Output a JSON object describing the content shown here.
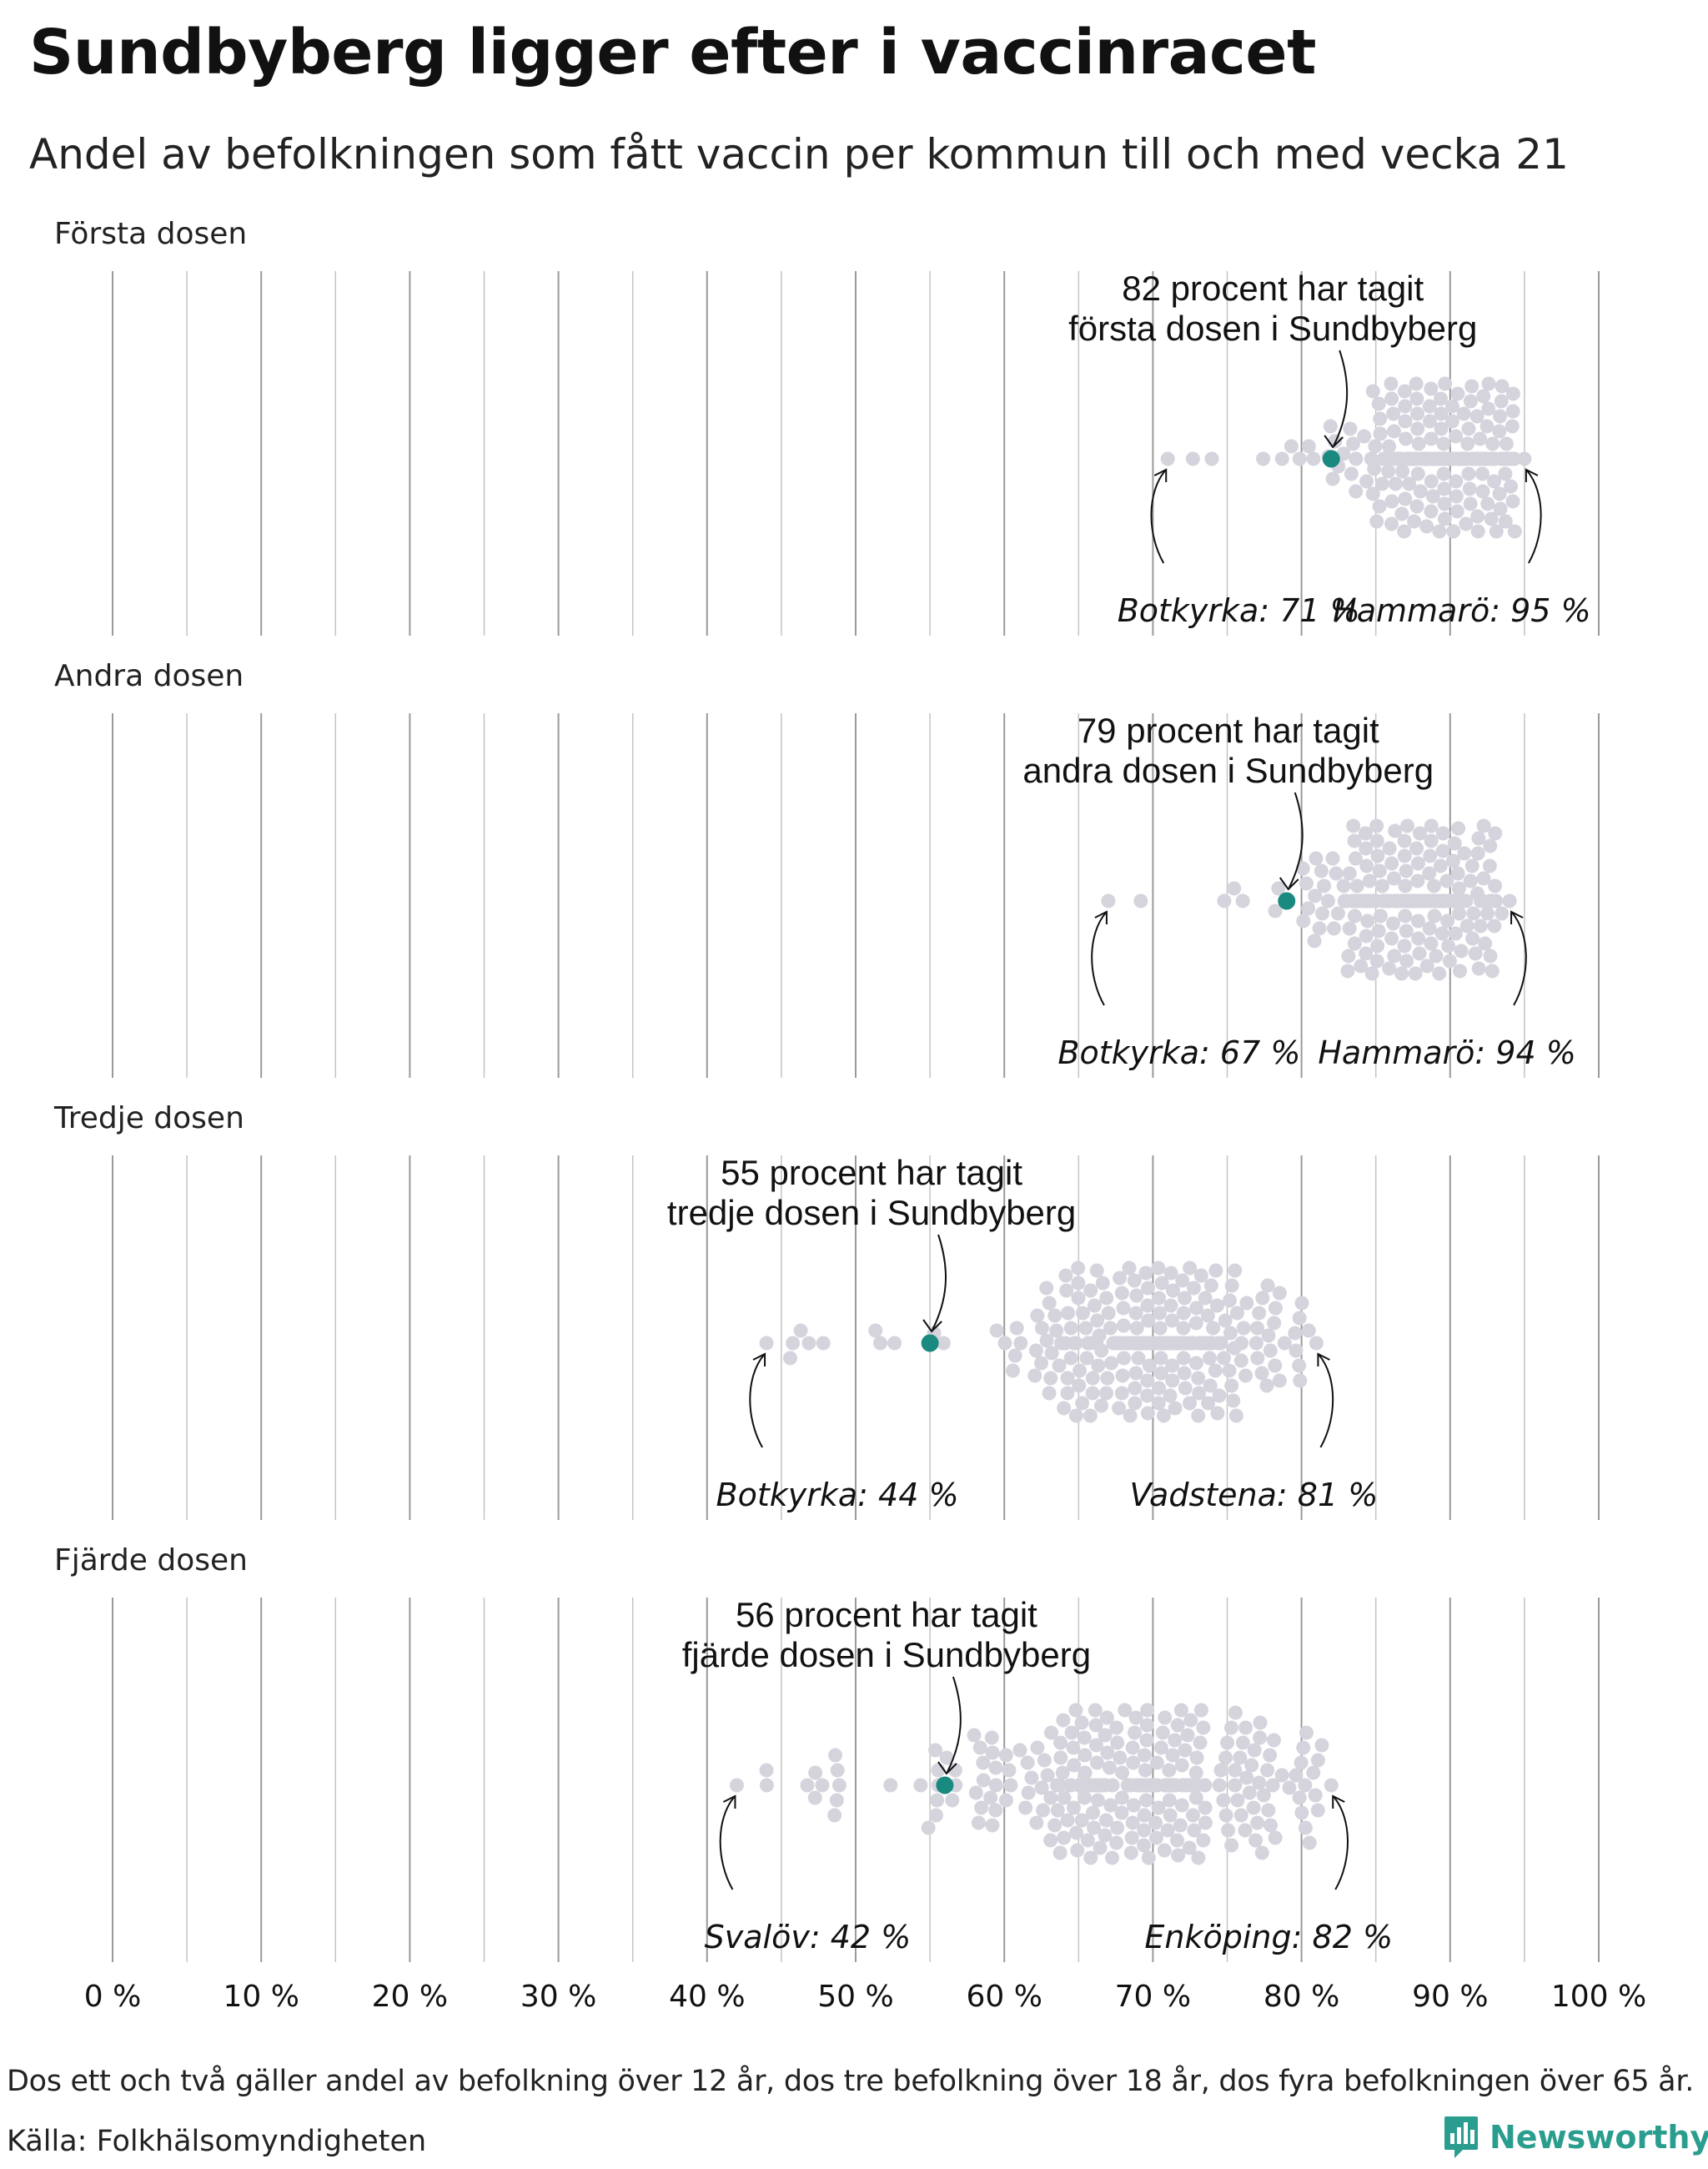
{
  "title": "Sundbyberg ligger efter i vaccinracet",
  "subtitle": "Andel av befolkningen som fått vaccin per kommun till och med vecka 21",
  "footnote": "Dos ett och två gäller andel av befolkning över 12 år, dos tre befolkning över 18 år, dos fyra befolkningen över 65 år.",
  "source": "Källa: Folkhälsomyndigheten",
  "brand": {
    "name": "Newsworthy",
    "icon": "newsworthy-logo-icon"
  },
  "colors": {
    "highlight": "#1a8a80",
    "dots": "#d5d4dd",
    "grid": "#9a9a9a",
    "text": "#111111",
    "brand": "#2a9d8f"
  },
  "chart_data": {
    "type": "scatter",
    "subtype": "beeswarm",
    "xlim": [
      0,
      100
    ],
    "xticks": [
      0,
      10,
      20,
      30,
      40,
      50,
      60,
      70,
      80,
      90,
      100
    ],
    "xtick_labels": [
      "0 %",
      "10 %",
      "20 %",
      "30 %",
      "40 %",
      "50 %",
      "60 %",
      "70 %",
      "80 %",
      "90 %",
      "100 %"
    ],
    "grid": true,
    "panels": [
      {
        "label": "Första dosen",
        "highlight": {
          "name": "Sundbyberg",
          "value": 82,
          "label_lines": [
            "82 procent har tagit",
            "första dosen i Sundbyberg"
          ]
        },
        "min": {
          "name": "Botkyrka",
          "value": 71,
          "label": "Botkyrka: 71 %"
        },
        "max": {
          "name": "Hammarö",
          "value": 95,
          "label": "Hammarö: 95 %"
        },
        "center": 89.5,
        "spread": 3.0,
        "count": 285
      },
      {
        "label": "Andra dosen",
        "highlight": {
          "name": "Sundbyberg",
          "value": 79,
          "label_lines": [
            "79 procent har tagit",
            "andra dosen i Sundbyberg"
          ]
        },
        "min": {
          "name": "Botkyrka",
          "value": 67,
          "label": "Botkyrka: 67 %"
        },
        "max": {
          "name": "Hammarö",
          "value": 94,
          "label": "Hammarö: 94 %"
        },
        "center": 87.0,
        "spread": 3.0,
        "count": 285
      },
      {
        "label": "Tredje dosen",
        "highlight": {
          "name": "Sundbyberg",
          "value": 55,
          "label_lines": [
            "55 procent har tagit",
            "tredje dosen i Sundbyberg"
          ]
        },
        "min": {
          "name": "Botkyrka",
          "value": 44,
          "label": "Botkyrka: 44 %"
        },
        "max": {
          "name": "Vadstena",
          "value": 81,
          "label": "Vadstena: 81 %"
        },
        "center": 70.5,
        "spread": 4.5,
        "count": 285
      },
      {
        "label": "Fjärde dosen",
        "highlight": {
          "name": "Sundbyberg",
          "value": 56,
          "label_lines": [
            "56 procent har tagit",
            "fjärde dosen i Sundbyberg"
          ]
        },
        "min": {
          "name": "Svalöv",
          "value": 42,
          "label": "Svalöv: 42 %"
        },
        "max": {
          "name": "Enköping",
          "value": 82,
          "label": "Enköping: 82 %"
        },
        "center": 69.5,
        "spread": 6.5,
        "count": 285
      }
    ]
  }
}
